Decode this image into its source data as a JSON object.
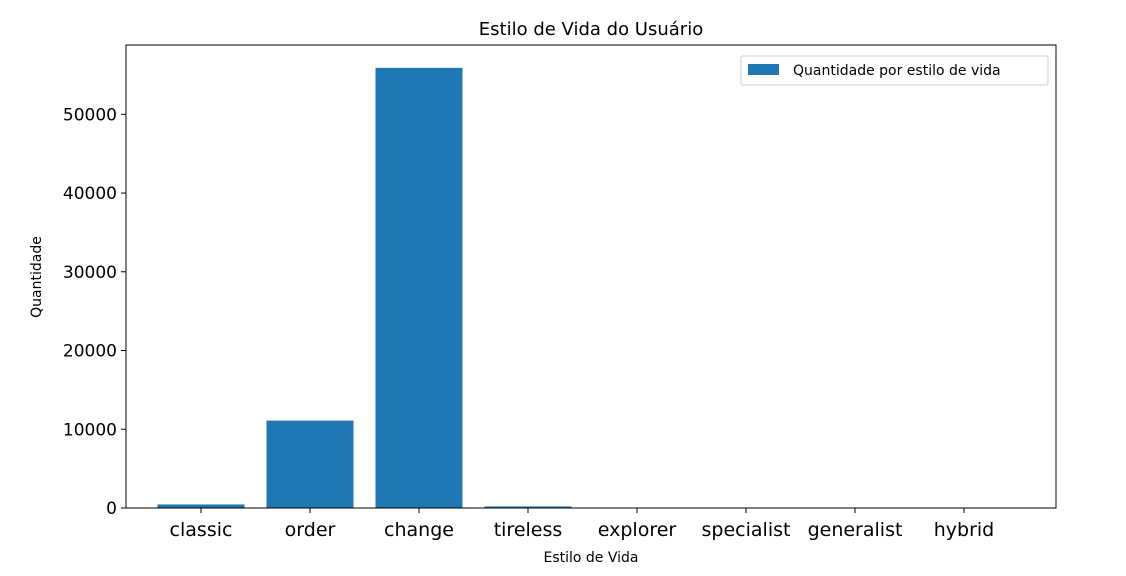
{
  "chart_data": {
    "type": "bar",
    "title": "Estilo de Vida do Usuário",
    "xlabel": "Estilo de Vida",
    "ylabel": "Quantidade",
    "categories": [
      "classic",
      "order",
      "change",
      "tireless",
      "explorer",
      "specialist",
      "generalist",
      "hybrid"
    ],
    "series": [
      {
        "name": "Quantidade por estilo de vida",
        "values": [
          450,
          11100,
          55900,
          200,
          40,
          20,
          15,
          10
        ],
        "color": "#1f77b4"
      }
    ],
    "ylim": [
      0,
      58800
    ],
    "yticks": [
      0,
      10000,
      20000,
      30000,
      40000,
      50000
    ],
    "ytick_labels": [
      "0",
      "10000",
      "20000",
      "30000",
      "40000",
      "50000"
    ],
    "grid": false,
    "legend_position": "top-right"
  }
}
